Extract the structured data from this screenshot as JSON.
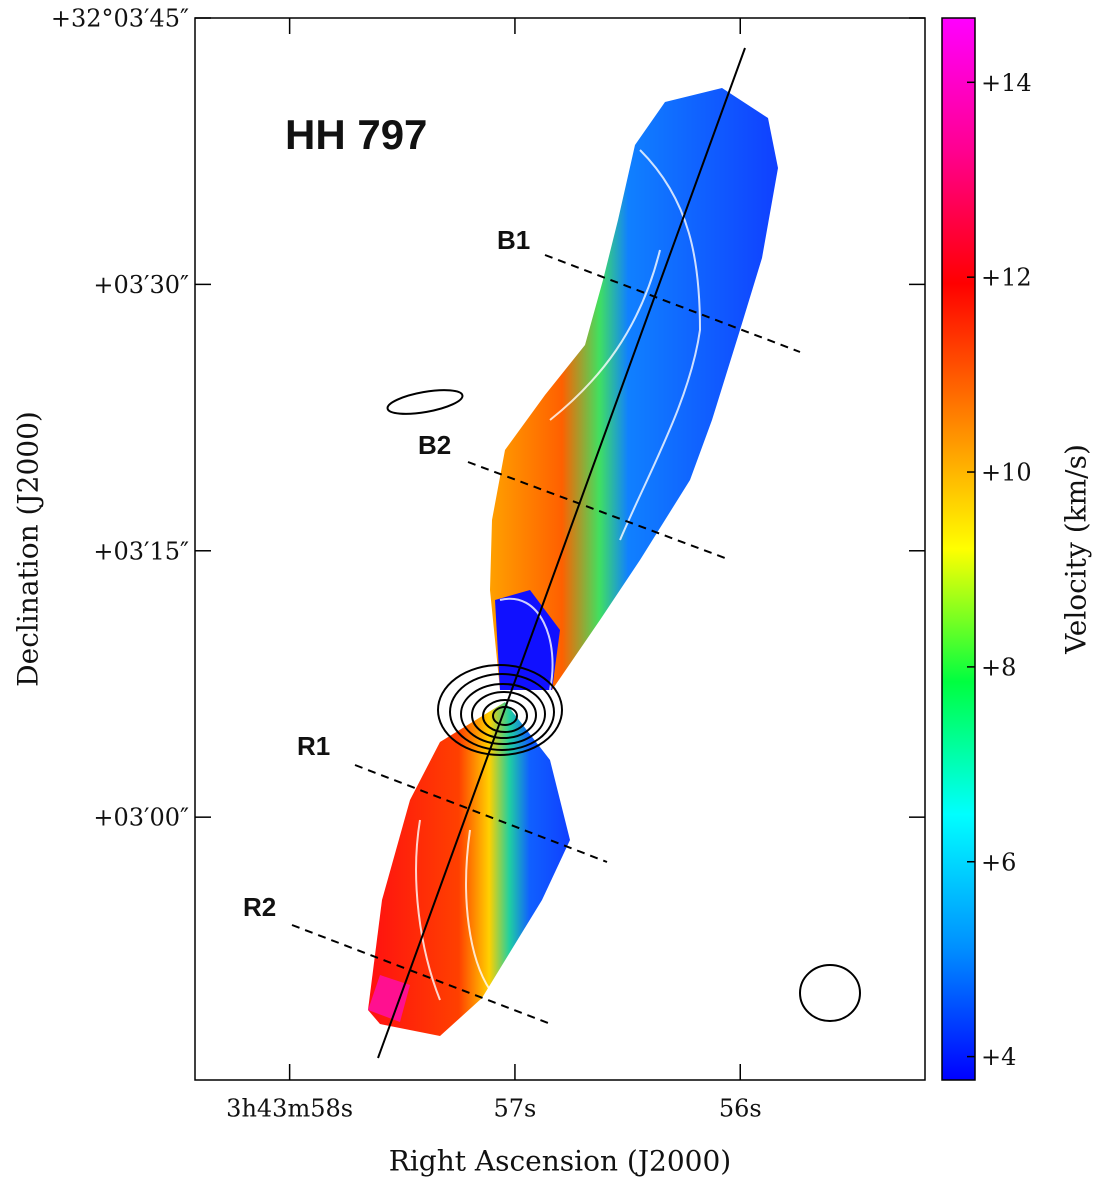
{
  "chart_data": {
    "type": "velocity-map",
    "title": "HH 797",
    "x_label": "Right Ascension (J2000)",
    "y_label": "Declination (J2000)",
    "colorbar_label": "Velocity (km/s)",
    "annotations": [
      "B1",
      "B2",
      "R1",
      "R2"
    ],
    "xlim": [
      58.42,
      55.18
    ],
    "xticks": [
      {
        "value": 58,
        "label": "3h43m58s"
      },
      {
        "value": 57,
        "label": "57s"
      },
      {
        "value": 56,
        "label": "56s"
      }
    ],
    "ylim": [
      165.2,
      225
    ],
    "yticks": [
      {
        "value": 225,
        "label": "+32°03′45″"
      },
      {
        "value": 210,
        "label": "+03′30″"
      },
      {
        "value": 195,
        "label": "+03′15″"
      },
      {
        "value": 180,
        "label": "+03′00″"
      }
    ],
    "clim": [
      3.76,
      14.66
    ],
    "cticks": [
      {
        "value": 4,
        "label": "+4"
      },
      {
        "value": 6,
        "label": "+6"
      },
      {
        "value": 8,
        "label": "+8"
      },
      {
        "value": 10,
        "label": "+10"
      },
      {
        "value": 12,
        "label": "+12"
      },
      {
        "value": 14,
        "label": "+14"
      }
    ],
    "colormap": [
      "#0000ff",
      "#0090ff",
      "#00ffff",
      "#00ff40",
      "#ffff00",
      "#ff8000",
      "#ff0000",
      "#ff0090",
      "#ff00ff"
    ]
  }
}
